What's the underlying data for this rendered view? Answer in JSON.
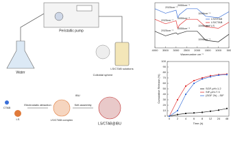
{
  "diagram": {
    "pump": "Peristaltic pump",
    "water": "Water",
    "solutions": "LS/CTAB solutions",
    "sphere": "Colloidal sphere",
    "ctab": "CTAB",
    "ls": "LS",
    "attraction": "Electrostatic attraction",
    "complex": "LS/CTAB complex",
    "ibu": "IBU",
    "assembly": "Self-assembly",
    "product": "LS/CTAB@IBU"
  },
  "chart_data": [
    {
      "type": "line",
      "x_label": "Wavenumber cm⁻¹",
      "x": [
        4000,
        3500,
        3000,
        2920,
        2850,
        2500,
        2000,
        1596,
        1000,
        500
      ],
      "series": [
        {
          "name": "LS/STAB",
          "color": "#3a6fd8",
          "values": [
            2.6,
            2.3,
            2.5,
            2.0,
            2.2,
            2.6,
            2.6,
            2.1,
            2.0,
            2.4
          ]
        },
        {
          "name": "LS/CTAB",
          "color": "#e03030",
          "values": [
            1.9,
            1.6,
            1.8,
            1.3,
            1.5,
            1.9,
            1.9,
            1.4,
            1.3,
            1.7
          ]
        },
        {
          "name": "LS",
          "color": "#222222",
          "values": [
            1.1,
            0.8,
            1.0,
            0.9,
            0.95,
            1.1,
            1.1,
            0.5,
            0.4,
            0.9
          ]
        }
      ],
      "xlim": [
        4000,
        500
      ],
      "ylim": [
        0,
        3
      ],
      "xticks": [
        4000,
        3500,
        3000,
        2500,
        2000,
        1500,
        1000,
        500
      ],
      "annotations": [
        "2920cm⁻¹",
        "2850cm⁻¹",
        "1596cm⁻¹",
        "2920cm⁻¹",
        "2850cm⁻¹",
        "1596cm⁻¹",
        "2920cm⁻¹",
        "2850cm⁻¹",
        "1596cm⁻¹"
      ]
    },
    {
      "type": "line",
      "x_label": "Time (h)",
      "y_label": "Cumulative Release (%)",
      "categories": [
        "0",
        "2",
        "4",
        "6",
        "8",
        "12",
        "24",
        "48"
      ],
      "series": [
        {
          "name": "SGF-pH=1.2",
          "color": "#222222",
          "values": [
            0,
            3,
            5,
            6,
            7,
            9,
            11,
            14
          ]
        },
        {
          "name": "SIF-pH=7.3",
          "color": "#e03030",
          "values": [
            0,
            30,
            55,
            65,
            70,
            74,
            76,
            77
          ]
        },
        {
          "name": "(SGF 2h)→SIF",
          "color": "#3a6fd8",
          "values": [
            0,
            10,
            40,
            60,
            68,
            72,
            75,
            76
          ]
        }
      ],
      "ylim": [
        0,
        100
      ],
      "yticks": [
        0,
        10,
        20,
        30,
        40,
        50,
        60,
        70,
        80,
        90,
        100
      ]
    }
  ]
}
